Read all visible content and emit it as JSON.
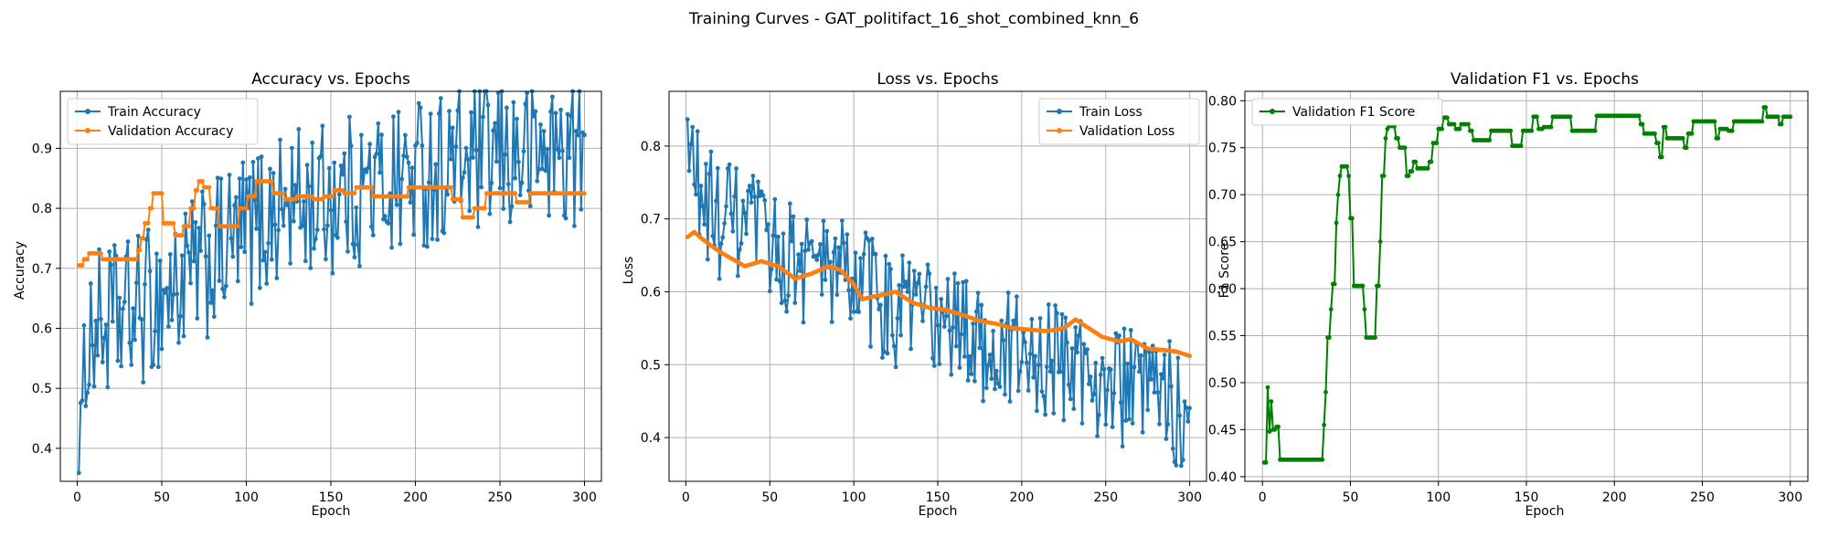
{
  "figure": {
    "suptitle": "Training Curves - GAT_politifact_16_shot_combined_knn_6"
  },
  "colors": {
    "train": "#1f77b4",
    "validation": "#ff7f0e",
    "f1": "#008000"
  },
  "chart_data": [
    {
      "type": "line",
      "title": "Accuracy vs. Epochs",
      "xlabel": "Epoch",
      "ylabel": "Accuracy",
      "xlim": [
        -10,
        310
      ],
      "ylim": [
        0.345,
        0.995
      ],
      "xticks": [
        0,
        50,
        100,
        150,
        200,
        250,
        300
      ],
      "yticks": [
        0.4,
        0.5,
        0.6,
        0.7,
        0.8,
        0.9
      ],
      "grid": true,
      "legend_position": "upper-left",
      "series": [
        {
          "name": "Train Accuracy",
          "color": "#1f77b4",
          "noise_amplitude": 0.13,
          "anchors": [
            [
              1,
              0.47
            ],
            [
              3,
              0.375
            ],
            [
              5,
              0.59
            ],
            [
              10,
              0.6
            ],
            [
              30,
              0.62
            ],
            [
              60,
              0.67
            ],
            [
              100,
              0.76
            ],
            [
              120,
              0.8
            ],
            [
              150,
              0.82
            ],
            [
              180,
              0.84
            ],
            [
              200,
              0.86
            ],
            [
              230,
              0.88
            ],
            [
              260,
              0.89
            ],
            [
              300,
              0.9
            ]
          ]
        },
        {
          "name": "Validation Accuracy",
          "color": "#ff7f0e",
          "steps": [
            [
              1,
              0.705
            ],
            [
              4,
              0.715
            ],
            [
              7,
              0.725
            ],
            [
              15,
              0.715
            ],
            [
              33,
              0.715
            ],
            [
              36,
              0.73
            ],
            [
              38,
              0.75
            ],
            [
              40,
              0.775
            ],
            [
              43,
              0.8
            ],
            [
              45,
              0.825
            ],
            [
              51,
              0.775
            ],
            [
              58,
              0.755
            ],
            [
              63,
              0.77
            ],
            [
              67,
              0.8
            ],
            [
              70,
              0.83
            ],
            [
              72,
              0.845
            ],
            [
              75,
              0.835
            ],
            [
              79,
              0.8
            ],
            [
              84,
              0.77
            ],
            [
              96,
              0.8
            ],
            [
              101,
              0.82
            ],
            [
              106,
              0.845
            ],
            [
              116,
              0.825
            ],
            [
              123,
              0.815
            ],
            [
              130,
              0.82
            ],
            [
              140,
              0.815
            ],
            [
              146,
              0.82
            ],
            [
              152,
              0.83
            ],
            [
              158,
              0.825
            ],
            [
              165,
              0.835
            ],
            [
              175,
              0.82
            ],
            [
              196,
              0.835
            ],
            [
              222,
              0.815
            ],
            [
              228,
              0.785
            ],
            [
              235,
              0.8
            ],
            [
              242,
              0.825
            ],
            [
              260,
              0.81
            ],
            [
              268,
              0.825
            ],
            [
              300,
              0.825
            ]
          ]
        }
      ]
    },
    {
      "type": "line",
      "title": "Loss vs. Epochs",
      "xlabel": "Epoch",
      "ylabel": "Loss",
      "xlim": [
        -10,
        310
      ],
      "ylim": [
        0.34,
        0.875
      ],
      "xticks": [
        0,
        50,
        100,
        150,
        200,
        250,
        300
      ],
      "yticks": [
        0.4,
        0.5,
        0.6,
        0.7,
        0.8
      ],
      "grid": true,
      "legend_position": "upper-right",
      "series": [
        {
          "name": "Train Loss",
          "color": "#1f77b4",
          "noise_amplitude": 0.085,
          "anchors": [
            [
              1,
              0.77
            ],
            [
              3,
              0.79
            ],
            [
              10,
              0.72
            ],
            [
              20,
              0.7
            ],
            [
              40,
              0.68
            ],
            [
              60,
              0.65
            ],
            [
              80,
              0.63
            ],
            [
              100,
              0.62
            ],
            [
              120,
              0.58
            ],
            [
              150,
              0.56
            ],
            [
              180,
              0.53
            ],
            [
              200,
              0.51
            ],
            [
              230,
              0.5
            ],
            [
              260,
              0.47
            ],
            [
              300,
              0.44
            ]
          ]
        },
        {
          "name": "Validation Loss",
          "color": "#ff7f0e",
          "anchors": [
            [
              1,
              0.675
            ],
            [
              5,
              0.682
            ],
            [
              10,
              0.672
            ],
            [
              20,
              0.655
            ],
            [
              30,
              0.642
            ],
            [
              35,
              0.635
            ],
            [
              45,
              0.642
            ],
            [
              55,
              0.635
            ],
            [
              65,
              0.618
            ],
            [
              75,
              0.625
            ],
            [
              85,
              0.635
            ],
            [
              92,
              0.63
            ],
            [
              100,
              0.61
            ],
            [
              105,
              0.59
            ],
            [
              115,
              0.595
            ],
            [
              125,
              0.6
            ],
            [
              135,
              0.585
            ],
            [
              145,
              0.578
            ],
            [
              155,
              0.575
            ],
            [
              165,
              0.568
            ],
            [
              175,
              0.56
            ],
            [
              185,
              0.556
            ],
            [
              195,
              0.55
            ],
            [
              205,
              0.548
            ],
            [
              215,
              0.546
            ],
            [
              225,
              0.55
            ],
            [
              232,
              0.562
            ],
            [
              240,
              0.55
            ],
            [
              248,
              0.538
            ],
            [
              258,
              0.532
            ],
            [
              265,
              0.535
            ],
            [
              275,
              0.522
            ],
            [
              285,
              0.52
            ],
            [
              292,
              0.518
            ],
            [
              300,
              0.512
            ]
          ]
        }
      ]
    },
    {
      "type": "line",
      "title": "Validation F1 vs. Epochs",
      "xlabel": "Epoch",
      "ylabel": "F1 Score",
      "xlim": [
        -10,
        310
      ],
      "ylim": [
        0.395,
        0.81
      ],
      "xticks": [
        0,
        50,
        100,
        150,
        200,
        250,
        300
      ],
      "yticks": [
        0.4,
        0.45,
        0.5,
        0.55,
        0.6,
        0.65,
        0.7,
        0.75,
        0.8
      ],
      "grid": true,
      "legend_position": "upper-left",
      "series": [
        {
          "name": "Validation F1 Score",
          "color": "#008000",
          "steps": [
            [
              1,
              0.415
            ],
            [
              3,
              0.495
            ],
            [
              4,
              0.448
            ],
            [
              5,
              0.48
            ],
            [
              6,
              0.45
            ],
            [
              8,
              0.453
            ],
            [
              10,
              0.418
            ],
            [
              35,
              0.455
            ],
            [
              36,
              0.49
            ],
            [
              37,
              0.548
            ],
            [
              39,
              0.578
            ],
            [
              40,
              0.605
            ],
            [
              42,
              0.67
            ],
            [
              43,
              0.7
            ],
            [
              44,
              0.72
            ],
            [
              45,
              0.73
            ],
            [
              49,
              0.72
            ],
            [
              50,
              0.675
            ],
            [
              52,
              0.603
            ],
            [
              58,
              0.578
            ],
            [
              59,
              0.548
            ],
            [
              65,
              0.603
            ],
            [
              67,
              0.65
            ],
            [
              68,
              0.72
            ],
            [
              70,
              0.76
            ],
            [
              71,
              0.77
            ],
            [
              72,
              0.773
            ],
            [
              76,
              0.76
            ],
            [
              78,
              0.75
            ],
            [
              82,
              0.72
            ],
            [
              84,
              0.725
            ],
            [
              86,
              0.735
            ],
            [
              88,
              0.728
            ],
            [
              95,
              0.735
            ],
            [
              97,
              0.755
            ],
            [
              100,
              0.77
            ],
            [
              103,
              0.782
            ],
            [
              106,
              0.775
            ],
            [
              110,
              0.77
            ],
            [
              113,
              0.775
            ],
            [
              118,
              0.768
            ],
            [
              120,
              0.758
            ],
            [
              130,
              0.768
            ],
            [
              142,
              0.752
            ],
            [
              148,
              0.768
            ],
            [
              154,
              0.783
            ],
            [
              157,
              0.77
            ],
            [
              160,
              0.772
            ],
            [
              165,
              0.783
            ],
            [
              176,
              0.768
            ],
            [
              190,
              0.784
            ],
            [
              215,
              0.775
            ],
            [
              217,
              0.765
            ],
            [
              224,
              0.755
            ],
            [
              226,
              0.74
            ],
            [
              228,
              0.772
            ],
            [
              230,
              0.76
            ],
            [
              240,
              0.75
            ],
            [
              242,
              0.765
            ],
            [
              245,
              0.778
            ],
            [
              258,
              0.76
            ],
            [
              260,
              0.77
            ],
            [
              265,
              0.768
            ],
            [
              268,
              0.778
            ],
            [
              285,
              0.793
            ],
            [
              287,
              0.783
            ],
            [
              294,
              0.775
            ],
            [
              296,
              0.783
            ],
            [
              300,
              0.783
            ]
          ]
        }
      ]
    }
  ]
}
